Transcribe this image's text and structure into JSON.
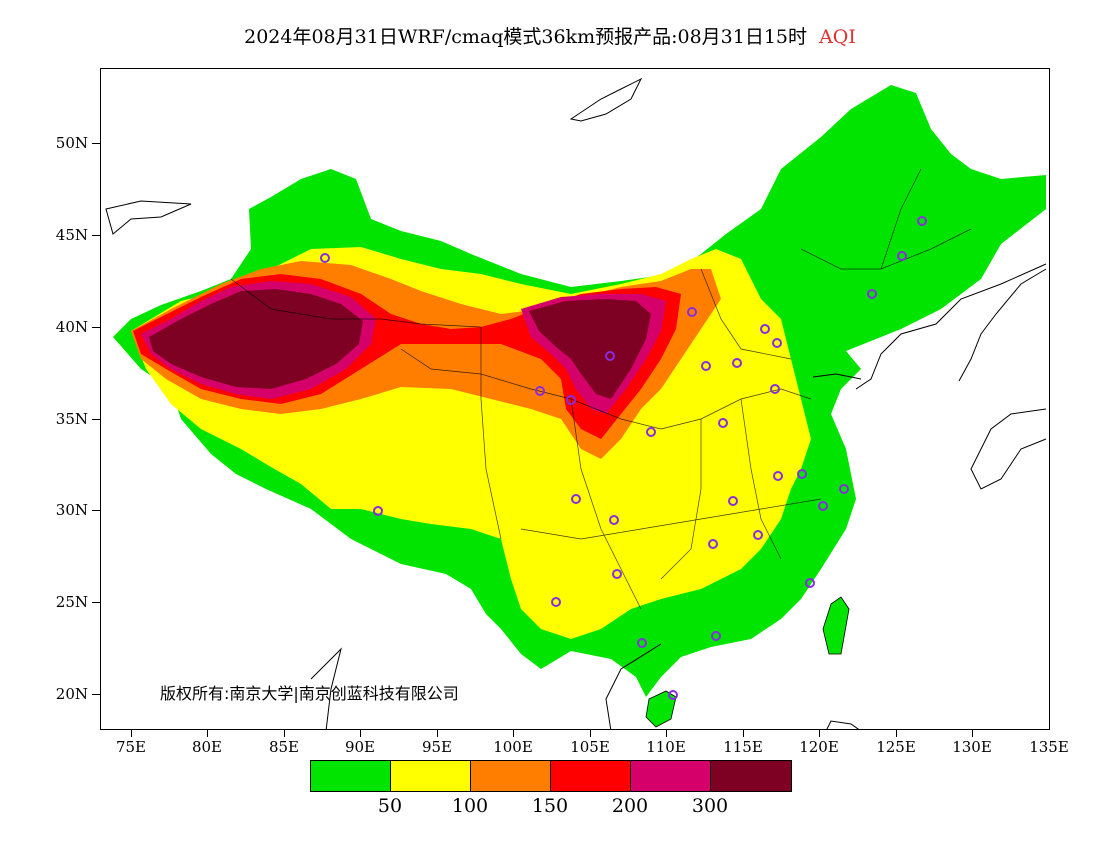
{
  "title": {
    "main": "2024年08月31日WRF/cmaq模式36km预报产品:08月31日15时",
    "variable": "AQI"
  },
  "axes": {
    "y_labels": [
      "50N",
      "45N",
      "40N",
      "35N",
      "30N",
      "25N",
      "20N"
    ],
    "x_labels": [
      "75E",
      "80E",
      "85E",
      "90E",
      "95E",
      "100E",
      "105E",
      "110E",
      "115E",
      "120E",
      "125E",
      "130E",
      "135E"
    ]
  },
  "copyright": "版权所有:南京大学|南京创蓝科技有限公司",
  "legend": {
    "colors": [
      "#00e400",
      "#ffff00",
      "#ff7e00",
      "#ff0000",
      "#d6006b",
      "#7e0023"
    ],
    "labels": [
      "50",
      "100",
      "150",
      "200",
      "300"
    ]
  },
  "city_marker_color": "#8a2be2"
}
